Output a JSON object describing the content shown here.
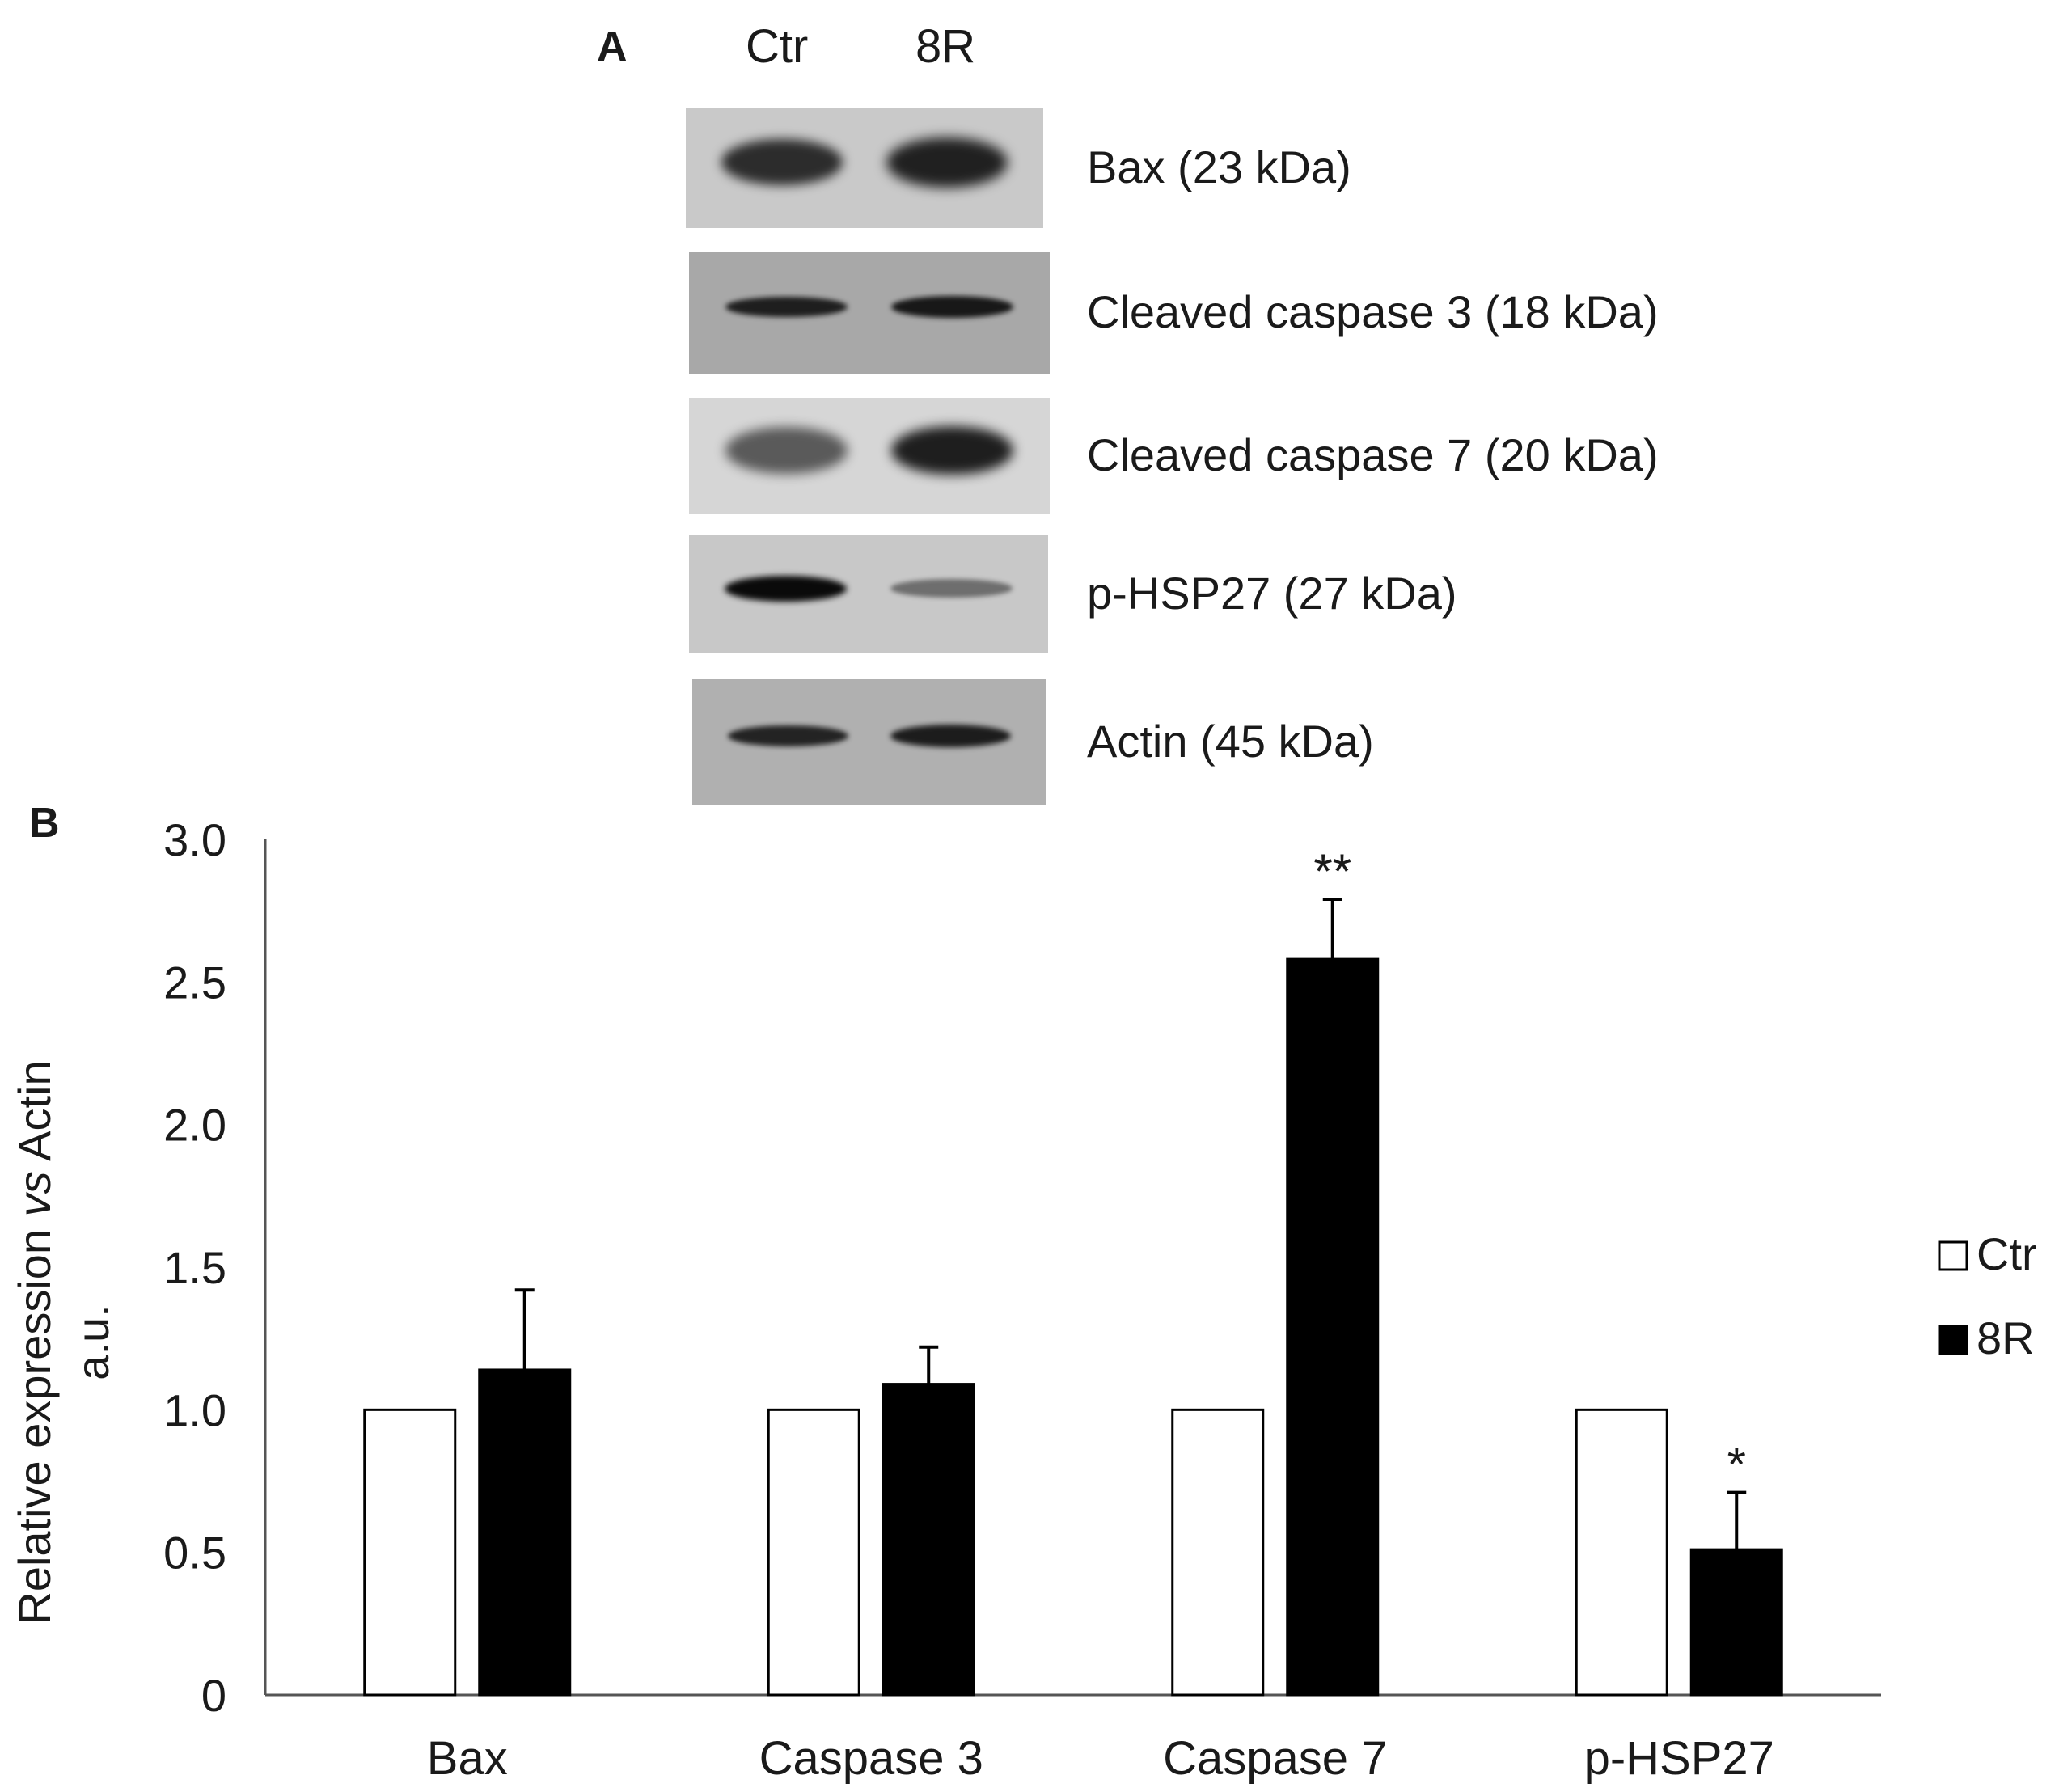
{
  "panel_a": {
    "label": "A",
    "lanes": [
      "Ctr",
      "8R"
    ],
    "blots": [
      {
        "label": "Bax (23 kDa)",
        "background": "#c9c9c9",
        "bands": [
          {
            "intensity": 0.78,
            "thickness": 0.38
          },
          {
            "intensity": 0.84,
            "thickness": 0.42
          }
        ]
      },
      {
        "label": "Cleaved caspase 3 (18 kDa)",
        "background": "#a8a8a8",
        "bands": [
          {
            "intensity": 0.82,
            "thickness": 0.17
          },
          {
            "intensity": 0.86,
            "thickness": 0.18
          }
        ]
      },
      {
        "label": "Cleaved caspase 7 (20 kDa)",
        "background": "#d6d6d6",
        "bands": [
          {
            "intensity": 0.58,
            "thickness": 0.4
          },
          {
            "intensity": 0.86,
            "thickness": 0.42
          }
        ]
      },
      {
        "label": "p-HSP27 (27 kDa)",
        "background": "#c8c8c8",
        "bands": [
          {
            "intensity": 0.95,
            "thickness": 0.22
          },
          {
            "intensity": 0.45,
            "thickness": 0.16
          }
        ]
      },
      {
        "label": "Actin (45 kDa)",
        "background": "#b0b0b0",
        "bands": [
          {
            "intensity": 0.8,
            "thickness": 0.17
          },
          {
            "intensity": 0.84,
            "thickness": 0.18
          }
        ]
      }
    ]
  },
  "panel_b": {
    "label": "B"
  },
  "chart_data": {
    "type": "bar",
    "categories": [
      "Bax",
      "Caspase 3",
      "Caspase 7",
      "p-HSP27"
    ],
    "series": [
      {
        "name": "Ctr",
        "values": [
          1.0,
          1.0,
          1.0,
          1.0
        ],
        "errors": [
          0,
          0,
          0,
          0
        ],
        "color": "#ffffff"
      },
      {
        "name": "8R",
        "values": [
          1.14,
          1.09,
          2.58,
          0.51
        ],
        "errors": [
          0.28,
          0.13,
          0.21,
          0.2
        ],
        "color": "#000000"
      }
    ],
    "annotations": [
      {
        "category": "Caspase 7",
        "series": "8R",
        "text": "**"
      },
      {
        "category": "p-HSP27",
        "series": "8R",
        "text": "*"
      }
    ],
    "ylabel_parts": [
      "Relative expression ",
      "vs",
      " Actin"
    ],
    "ylabel_line2": "a.u.",
    "xlabel": "",
    "yticks": [
      {
        "value": 0,
        "label": "0"
      },
      {
        "value": 0.5,
        "label": "0.5"
      },
      {
        "value": 1.0,
        "label": "1.0"
      },
      {
        "value": 1.5,
        "label": "1.5"
      },
      {
        "value": 2.0,
        "label": "2.0"
      },
      {
        "value": 2.5,
        "label": "2.5"
      },
      {
        "value": 3.0,
        "label": "3.0"
      }
    ],
    "ylim": [
      0,
      3.0
    ],
    "grid": false,
    "legend": "right"
  }
}
